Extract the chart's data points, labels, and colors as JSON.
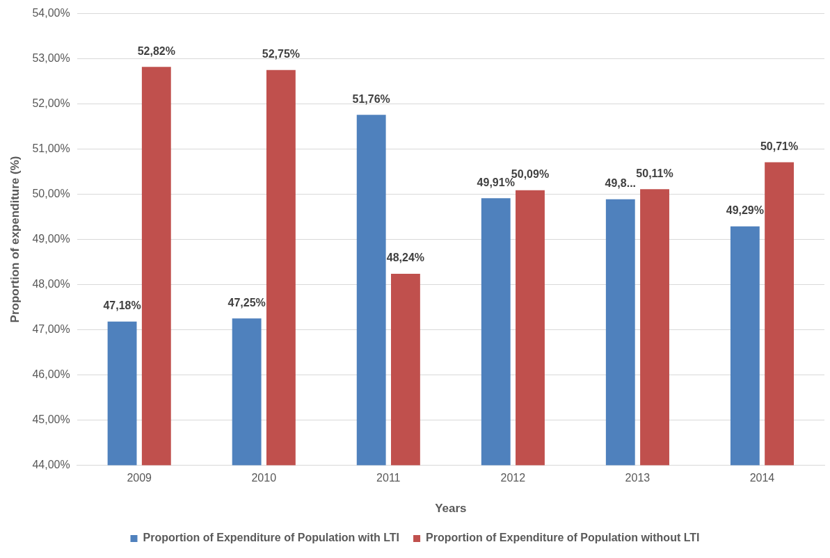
{
  "chart_data": {
    "type": "bar",
    "xlabel": "Years",
    "ylabel": "Proportion of expenditure (%)",
    "categories": [
      "2009",
      "2010",
      "2011",
      "2012",
      "2013",
      "2014"
    ],
    "series": [
      {
        "name": "Proportion of Expenditure of Population with LTI",
        "color": "#4f81bd",
        "values": [
          47.18,
          47.25,
          51.76,
          49.91,
          49.89,
          49.29
        ],
        "value_labels": [
          "47,18%",
          "47,25%",
          "51,76%",
          "49,91%",
          "49,8...",
          "49,29%"
        ]
      },
      {
        "name": "Proportion of Expenditure of Population without LTI",
        "color": "#c0504d",
        "values": [
          52.82,
          52.75,
          48.24,
          50.09,
          50.11,
          50.71
        ],
        "value_labels": [
          "52,82%",
          "52,75%",
          "48,24%",
          "50,09%",
          "50,11%",
          "50,71%"
        ]
      }
    ],
    "ylim": [
      44,
      54
    ],
    "yticks": [
      {
        "value": 44,
        "label": "44,00%"
      },
      {
        "value": 45,
        "label": "45,00%"
      },
      {
        "value": 46,
        "label": "46,00%"
      },
      {
        "value": 47,
        "label": "47,00%"
      },
      {
        "value": 48,
        "label": "48,00%"
      },
      {
        "value": 49,
        "label": "49,00%"
      },
      {
        "value": 50,
        "label": "50,00%"
      },
      {
        "value": 51,
        "label": "51,00%"
      },
      {
        "value": 52,
        "label": "52,00%"
      },
      {
        "value": 53,
        "label": "53,00%"
      },
      {
        "value": 54,
        "label": "54,00%"
      }
    ],
    "grid": "y",
    "legend": "bottom"
  }
}
